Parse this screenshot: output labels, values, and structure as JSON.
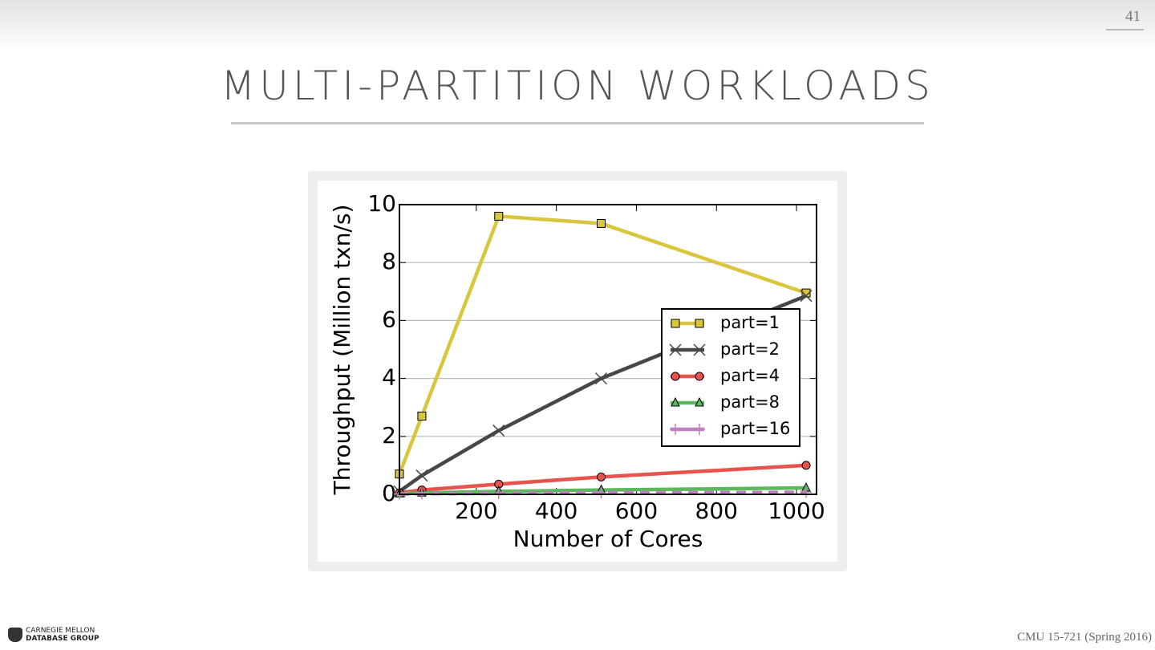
{
  "slide": {
    "number": "41",
    "title": "MULTI-PARTITION WORKLOADS",
    "logo": [
      "CARNEGIE MELLON",
      "DATABASE GROUP"
    ],
    "footer": "CMU 15-721 (Spring 2016)"
  },
  "chart_data": {
    "type": "line",
    "x_label": "Number of Cores",
    "y_label": "Throughput (Million txn/s)",
    "x": [
      8,
      64,
      256,
      512,
      1024
    ],
    "series": [
      {
        "name": "part=1",
        "color": "#d9c63c",
        "marker": "square",
        "values": [
          0.7,
          2.7,
          9.6,
          9.35,
          6.95
        ]
      },
      {
        "name": "part=2",
        "color": "#474747",
        "marker": "x",
        "values": [
          0.1,
          0.65,
          2.2,
          4.0,
          6.85
        ]
      },
      {
        "name": "part=4",
        "color": "#e8534d",
        "marker": "circle",
        "values": [
          0.05,
          0.15,
          0.35,
          0.6,
          1.0
        ]
      },
      {
        "name": "part=8",
        "color": "#5cb85c",
        "marker": "triangle",
        "values": [
          0.02,
          0.05,
          0.1,
          0.15,
          0.22
        ]
      },
      {
        "name": "part=16",
        "color": "#c17fc1",
        "marker": "plus",
        "values": [
          0.01,
          0.02,
          0.03,
          0.05,
          0.07
        ]
      }
    ],
    "xlim": [
      8,
      1050
    ],
    "ylim": [
      0,
      10
    ],
    "xticks": [
      200,
      400,
      600,
      800,
      1000
    ],
    "yticks": [
      0,
      2,
      4,
      6,
      8,
      10
    ],
    "grid": true,
    "legend": "right"
  }
}
